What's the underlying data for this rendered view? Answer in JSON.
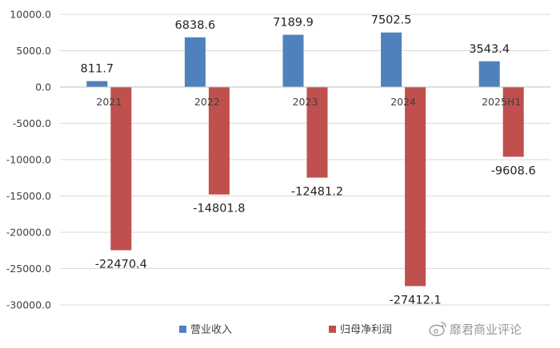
{
  "chart_data": {
    "type": "bar",
    "categories": [
      "2021",
      "2022",
      "2023",
      "2024",
      "2025H1"
    ],
    "series": [
      {
        "name": "营业收入",
        "color": "#4f81bd",
        "values": [
          811.7,
          6838.6,
          7189.9,
          7502.5,
          3543.4
        ],
        "labels": [
          "811.7",
          "6838.6",
          "7189.9",
          "7502.5",
          "3543.4"
        ]
      },
      {
        "name": "归母净利润",
        "color": "#c0504d",
        "values": [
          -22470.4,
          -14801.8,
          -12481.2,
          -27412.1,
          -9608.6
        ],
        "labels": [
          "-22470.4",
          "-14801.8",
          "-12481.2",
          "-27412.1",
          "-9608.6"
        ]
      }
    ],
    "ylim": [
      -30000,
      10000
    ],
    "yticks": [
      10000,
      5000,
      0,
      -5000,
      -10000,
      -15000,
      -20000,
      -25000,
      -30000
    ],
    "ytick_labels": [
      "10000.0",
      "5000.0",
      "0.0",
      "-5000.0",
      "-10000.0",
      "-15000.0",
      "-20000.0",
      "-25000.0",
      "-30000.0"
    ],
    "grid": true,
    "legend_position": "bottom",
    "title": "",
    "xlabel": "",
    "ylabel": ""
  },
  "watermark": {
    "icon": "weibo-icon",
    "text": "靡君商业评论"
  }
}
